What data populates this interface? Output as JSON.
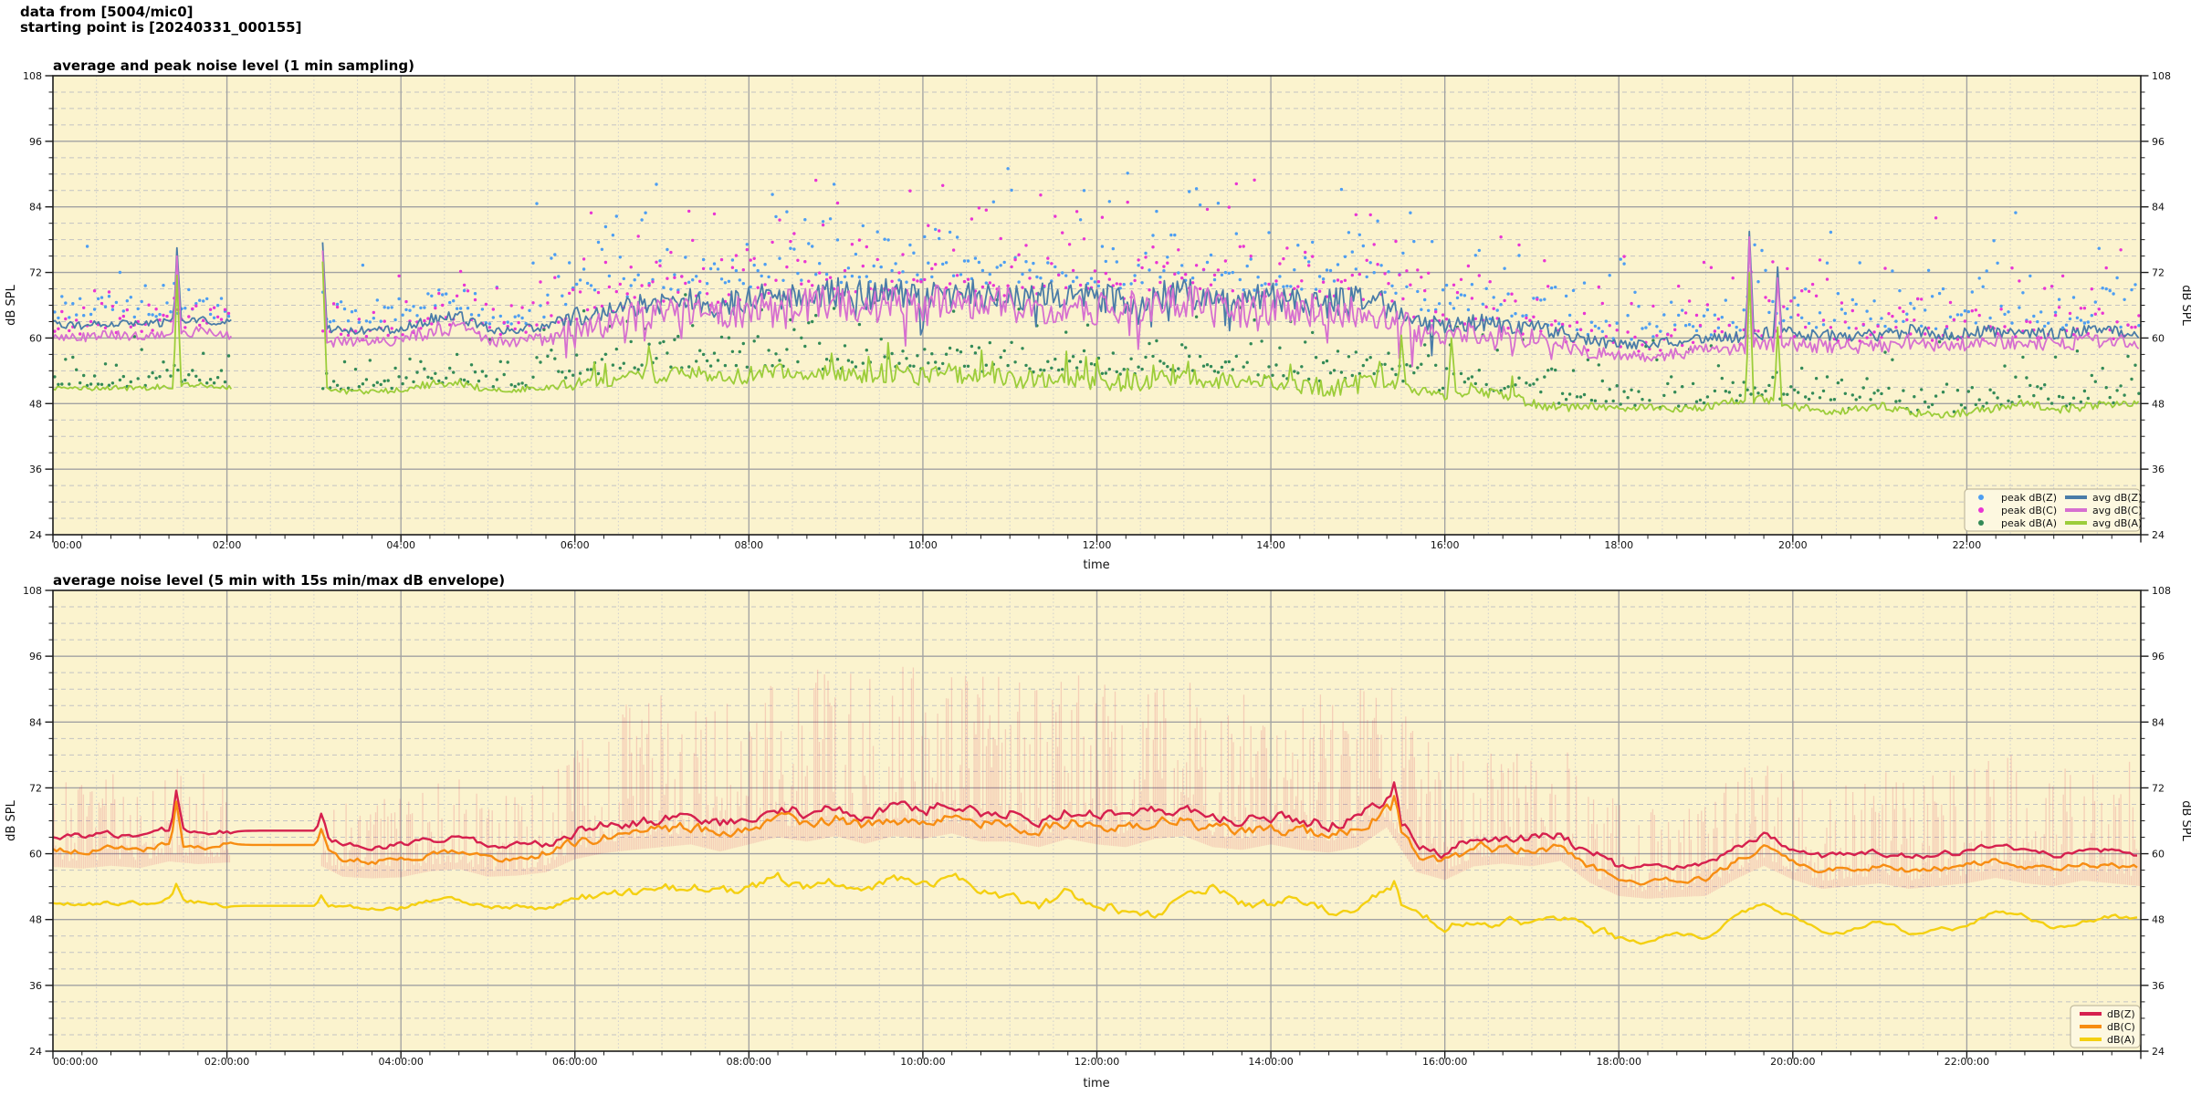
{
  "header": {
    "line1": "data from [5004/mic0]",
    "line2": "starting point is [20240331_000155]"
  },
  "colors": {
    "figure_bg": "#ffffff",
    "axes_bg": "#fbf3ce",
    "grid_major": "#a2a2a2",
    "grid_minor_h": "#c3c3c3",
    "grid_minor_v": "#cfcfcf",
    "spine": "#1c1c1c",
    "text": "#111111",
    "legend_bg": "#fdf8e0",
    "legend_border": "#b5ae93",
    "peak_dbz": "#4d9ef2",
    "peak_dbc": "#e935d4",
    "peak_dba": "#338a57",
    "avg_dbz": "#4a7ca8",
    "avg_dbc": "#d66fd0",
    "avg_dba": "#9ccd3a",
    "bot_dbz": "#d6204e",
    "bot_dbc": "#f78d12",
    "bot_dba": "#f4d011",
    "envelope": "#dc143c"
  },
  "chart_data": [
    {
      "type": "line+scatter",
      "title": "average and peak noise level (1 min sampling)",
      "xlabel": "time",
      "ylabel": "dB SPL",
      "ylim": [
        24,
        108
      ],
      "x_range_minutes": [
        0,
        1440
      ],
      "y_ticks": [
        108,
        96,
        84,
        72,
        60,
        48,
        36,
        24
      ],
      "y_minor_step_db": 3,
      "x_major_tick_minutes": 120,
      "x_minor_tick_minutes": 20,
      "x_minor_grid_minutes": 30,
      "x_tick_labels": [
        "00:00",
        "02:00",
        "04:00",
        "06:00",
        "08:00",
        "10:00",
        "12:00",
        "14:00",
        "16:00",
        "18:00",
        "20:00",
        "22:00"
      ],
      "grid": "major solid, minor dashed",
      "legend_position": "lower right",
      "legend_columns": 2,
      "data_gap_minutes": [
        123,
        185
      ],
      "anchor_step_minutes": 20,
      "noise_amp_anchors": [
        0.7,
        0.7,
        0.7,
        0.7,
        0.8,
        0.8,
        0.7,
        0.7,
        0.7,
        0.8,
        0.8,
        0.8,
        0.8,
        1.3,
        1.3,
        0.8,
        0.8,
        1.0,
        1.8,
        2.0,
        2.2,
        2.2,
        2.3,
        2.2,
        2.6,
        2.8,
        2.8,
        2.8,
        2.8,
        2.8,
        2.8,
        2.8,
        2.8,
        2.8,
        2.8,
        2.8,
        2.8,
        2.8,
        2.8,
        2.8,
        2.8,
        2.8,
        2.8,
        2.8,
        2.8,
        2.8,
        2.6,
        1.8,
        1.5,
        1.6,
        1.5,
        1.5,
        1.3,
        1.0,
        0.9,
        0.9,
        1.0,
        1.0,
        1.2,
        1.3,
        1.2,
        1.1,
        1.1,
        1.1,
        1.2,
        1.1,
        1.1,
        1.2,
        1.2,
        1.1,
        1.2,
        1.2,
        1.1
      ],
      "series": [
        {
          "name": "peak dB(Z)",
          "kind": "scatter",
          "color_key": "peak_dbz",
          "ref": "avg dB(Z)",
          "segments": [
            [
              0,
              330,
              1.5,
              2.4,
              20
            ],
            [
              330,
              990,
              2.5,
              5.2,
              25
            ],
            [
              990,
              1440,
              1.5,
              4.4,
              23
            ]
          ]
        },
        {
          "name": "peak dB(C)",
          "kind": "scatter",
          "color_key": "peak_dbc",
          "ref": "avg dB(C)",
          "segments": [
            [
              0,
              330,
              1.2,
              2.6,
              21
            ],
            [
              330,
              990,
              2.2,
              5.4,
              24
            ],
            [
              990,
              1440,
              1.2,
              4.6,
              24
            ]
          ]
        },
        {
          "name": "peak dB(A)",
          "kind": "scatter",
          "color_key": "peak_dba",
          "ref": "avg dB(A)",
          "segments": [
            [
              0,
              330,
              0.8,
              1.9,
              10
            ],
            [
              330,
              990,
              1.5,
              3.4,
              16
            ],
            [
              990,
              1440,
              0.8,
              3.0,
              18
            ]
          ]
        },
        {
          "name": "avg dB(Z)",
          "kind": "line",
          "color_key": "avg_dbz",
          "amp_scale": 1.0,
          "dip_prob": 0.05,
          "anchors": [
            62.5,
            62.3,
            62.8,
            62.4,
            63.0,
            63.4,
            62.8,
            62.8,
            62.8,
            61.8,
            61.4,
            61.4,
            61.5,
            63.6,
            64.0,
            61.6,
            61.5,
            62.0,
            63.8,
            64.8,
            65.8,
            66.3,
            66.8,
            65.8,
            66.8,
            67.8,
            67.8,
            68.3,
            67.8,
            68.3,
            67.8,
            68.3,
            67.8,
            67.8,
            67.3,
            67.8,
            67.3,
            66.8,
            67.8,
            68.3,
            67.3,
            66.8,
            67.3,
            66.8,
            66.3,
            66.8,
            66.0,
            63.3,
            62.3,
            63.0,
            62.5,
            62.0,
            61.0,
            59.5,
            58.8,
            58.8,
            59.3,
            59.8,
            60.3,
            61.0,
            61.0,
            60.5,
            60.5,
            60.5,
            61.3,
            60.8,
            60.8,
            61.3,
            61.3,
            60.8,
            61.3,
            61.3,
            61.0
          ],
          "spikes": [
            [
              86,
              76.5
            ],
            [
              186,
              77.5
            ],
            [
              1170,
              79.5
            ],
            [
              1189,
              73.0
            ]
          ]
        },
        {
          "name": "avg dB(C)",
          "kind": "line",
          "color_key": "avg_dbc",
          "amp_scale": 1.2,
          "dip_prob": 0.08,
          "anchors": [
            60.3,
            60.1,
            60.6,
            60.2,
            60.8,
            61.2,
            60.6,
            60.6,
            60.6,
            59.6,
            59.2,
            59.2,
            59.3,
            61.4,
            61.8,
            59.4,
            59.3,
            59.8,
            61.8,
            62.9,
            64.0,
            64.6,
            65.1,
            64.1,
            65.2,
            66.2,
            66.2,
            66.7,
            66.2,
            66.7,
            66.2,
            66.7,
            66.2,
            66.2,
            65.7,
            66.2,
            65.7,
            65.2,
            66.2,
            66.7,
            65.7,
            65.2,
            65.7,
            65.2,
            64.7,
            65.2,
            64.3,
            61.3,
            60.2,
            61.0,
            60.5,
            60.0,
            59.0,
            57.4,
            56.7,
            56.7,
            57.2,
            57.7,
            58.2,
            59.0,
            59.0,
            58.5,
            58.5,
            58.5,
            59.3,
            58.8,
            58.8,
            59.3,
            59.3,
            58.8,
            59.3,
            59.3,
            59.0
          ],
          "spikes": [
            [
              86,
              75.0
            ],
            [
              186,
              76.0
            ],
            [
              1170,
              78.5
            ],
            [
              1189,
              71.0
            ]
          ]
        },
        {
          "name": "avg dB(A)",
          "kind": "line",
          "color_key": "avg_dba",
          "amp_scale": 0.62,
          "up_prob": 0.06,
          "anchors": [
            50.9,
            50.7,
            50.9,
            50.8,
            51.2,
            51.4,
            51.0,
            51.0,
            51.0,
            50.6,
            50.2,
            50.3,
            50.4,
            51.6,
            51.9,
            50.4,
            50.5,
            51.0,
            51.6,
            52.0,
            52.6,
            53.0,
            53.6,
            52.8,
            53.2,
            53.6,
            53.2,
            53.8,
            53.2,
            53.6,
            53.0,
            53.6,
            52.8,
            52.6,
            52.0,
            52.8,
            52.2,
            51.6,
            52.4,
            53.2,
            52.4,
            51.8,
            52.0,
            51.6,
            51.0,
            51.6,
            52.2,
            50.4,
            49.4,
            50.2,
            49.6,
            48.0,
            47.2,
            47.6,
            47.0,
            47.4,
            47.0,
            47.4,
            48.4,
            48.8,
            47.6,
            46.6,
            46.8,
            47.6,
            46.4,
            46.0,
            46.4,
            47.2,
            48.2,
            46.8,
            47.4,
            48.0,
            48.2
          ],
          "spikes": [
            [
              86,
              71.5
            ],
            [
              186,
              74.0
            ],
            [
              411,
              58.5
            ],
            [
              930,
              60.5
            ],
            [
              965,
              60.0
            ],
            [
              1170,
              72.0
            ],
            [
              1189,
              62.0
            ]
          ]
        }
      ]
    },
    {
      "type": "line+envelope",
      "title": "average noise level (5 min with 15s min/max dB envelope)",
      "xlabel": "time",
      "ylabel": "dB SPL",
      "ylim": [
        24,
        108
      ],
      "x_range_minutes": [
        0,
        1440
      ],
      "y_ticks": [
        108,
        96,
        84,
        72,
        60,
        48,
        36,
        24
      ],
      "y_minor_step_db": 3,
      "x_major_tick_minutes": 120,
      "x_minor_tick_minutes": 20,
      "x_minor_grid_minutes": 30,
      "x_tick_labels": [
        "00:00:00",
        "02:00:00",
        "04:00:00",
        "06:00:00",
        "08:00:00",
        "10:00:00",
        "12:00:00",
        "14:00:00",
        "16:00:00",
        "18:00:00",
        "20:00:00",
        "22:00:00"
      ],
      "grid": "major solid, minor dashed",
      "legend_position": "lower right",
      "legend_columns": 1,
      "data_gap_minutes": [
        123,
        185
      ],
      "anchor_step_minutes": 20,
      "envelope": {
        "color_key": "envelope",
        "opacity": 0.16,
        "bottom_offset_below_dbc": 3.2,
        "top_anchors": [
          75,
          74,
          76,
          74,
          79,
          76,
          74,
          64,
          64,
          64,
          71,
          70,
          70,
          73,
          74,
          70,
          71,
          73,
          82,
          86,
          88,
          90,
          91,
          88,
          92,
          94,
          93,
          95,
          93,
          95,
          94,
          95,
          93,
          92,
          90,
          93,
          92,
          91,
          94,
          95,
          92,
          90,
          92,
          90,
          89,
          91,
          92,
          84,
          78,
          80,
          79,
          78,
          80,
          74,
          70,
          69,
          70,
          71,
          76,
          80,
          76,
          73,
          74,
          76,
          74,
          75,
          76,
          79,
          78,
          75,
          77,
          80,
          78
        ]
      },
      "series": [
        {
          "name": "dB(Z)",
          "kind": "line",
          "color_key": "bot_dbz",
          "amp_night": 0.5,
          "amp_day": 0.95,
          "anchors": [
            63.4,
            63.1,
            63.6,
            63.2,
            64.4,
            63.9,
            64.2,
            64.2,
            64.2,
            64.2,
            61.6,
            61.3,
            61.5,
            62.6,
            63.0,
            61.6,
            61.8,
            62.4,
            64.4,
            65.4,
            65.9,
            66.4,
            66.9,
            65.6,
            66.9,
            68.2,
            67.4,
            68.4,
            67.0,
            68.4,
            67.9,
            68.9,
            67.4,
            67.4,
            66.4,
            67.9,
            66.9,
            66.4,
            67.9,
            68.4,
            66.4,
            65.9,
            66.9,
            65.9,
            65.4,
            66.4,
            70.0,
            61.9,
            60.4,
            62.9,
            63.4,
            62.9,
            63.9,
            59.9,
            57.9,
            57.4,
            57.7,
            57.9,
            60.9,
            63.4,
            60.9,
            59.4,
            59.9,
            60.4,
            59.4,
            59.9,
            60.4,
            61.4,
            60.4,
            59.9,
            60.9,
            60.4,
            59.9
          ],
          "spikes": [
            [
              86,
              71.5
            ],
            [
              186,
              67.3
            ],
            [
              925,
              73.0
            ]
          ]
        },
        {
          "name": "dB(C)",
          "kind": "line",
          "color_key": "bot_dbc",
          "amp_night": 0.5,
          "amp_day": 0.9,
          "anchors": [
            60.8,
            60.5,
            61.0,
            60.6,
            61.8,
            61.3,
            61.6,
            61.6,
            61.6,
            61.6,
            59.0,
            58.7,
            58.9,
            60.0,
            60.4,
            59.0,
            59.2,
            59.8,
            62.2,
            63.3,
            63.9,
            64.4,
            64.9,
            63.6,
            64.9,
            66.2,
            65.4,
            66.4,
            65.0,
            66.4,
            65.9,
            66.9,
            65.4,
            65.4,
            64.4,
            65.9,
            64.9,
            64.4,
            65.9,
            66.4,
            64.4,
            63.9,
            64.9,
            63.9,
            63.4,
            64.4,
            68.0,
            59.9,
            58.4,
            60.9,
            61.4,
            60.9,
            61.9,
            57.9,
            55.5,
            55.0,
            55.3,
            55.5,
            58.5,
            61.0,
            58.5,
            56.8,
            57.3,
            57.8,
            56.8,
            57.3,
            57.8,
            58.8,
            57.8,
            57.3,
            58.3,
            57.8,
            57.3
          ],
          "spikes": [
            [
              86,
              69.5
            ],
            [
              186,
              64.5
            ],
            [
              925,
              70.5
            ]
          ]
        },
        {
          "name": "dB(A)",
          "kind": "line",
          "color_key": "bot_dba",
          "amp_night": 0.35,
          "amp_day": 0.8,
          "anchors": [
            51.0,
            50.8,
            51.0,
            50.9,
            51.6,
            51.2,
            50.5,
            50.5,
            50.5,
            50.5,
            50.3,
            50.1,
            50.2,
            51.4,
            51.6,
            50.2,
            50.3,
            50.8,
            51.6,
            52.2,
            52.8,
            53.4,
            54.2,
            53.0,
            53.6,
            55.6,
            54.0,
            55.0,
            53.6,
            55.4,
            54.0,
            56.4,
            53.0,
            52.0,
            50.2,
            53.0,
            51.0,
            49.6,
            48.6,
            52.0,
            54.0,
            51.0,
            50.6,
            51.6,
            49.6,
            50.0,
            54.4,
            49.0,
            47.0,
            47.6,
            48.0,
            46.6,
            48.6,
            46.0,
            44.6,
            43.9,
            45.6,
            44.6,
            48.6,
            51.0,
            48.6,
            45.6,
            46.0,
            47.6,
            45.6,
            46.0,
            46.6,
            49.6,
            48.6,
            46.6,
            47.6,
            48.6,
            48.0
          ],
          "spikes": [
            [
              86,
              54.5
            ],
            [
              186,
              52.4
            ],
            [
              925,
              55.0
            ]
          ]
        }
      ]
    }
  ]
}
